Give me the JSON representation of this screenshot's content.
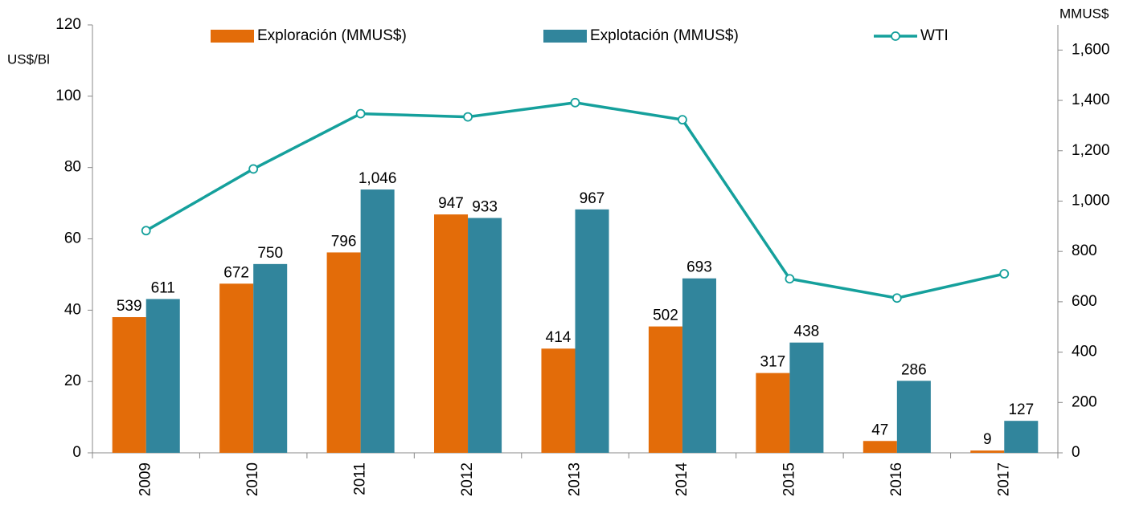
{
  "chart_data": {
    "type": "bar-line",
    "ylabel": "US$/Bl",
    "y2label": "MMUS$",
    "categories": [
      "2009",
      "2010",
      "2011",
      "2012",
      "2013",
      "2014",
      "2015",
      "2016",
      "2017"
    ],
    "series": [
      {
        "name": "Exploración (MMUS$)",
        "type": "bar",
        "axis": "y2",
        "color": "#e36c09",
        "values": [
          539,
          672,
          796,
          947,
          414,
          502,
          317,
          47,
          9
        ]
      },
      {
        "name": "Explotación (MMUS$)",
        "type": "bar",
        "axis": "y2",
        "color": "#31859c",
        "values": [
          611,
          750,
          1046,
          933,
          967,
          693,
          438,
          286,
          127
        ],
        "value_labels": [
          "611",
          "750",
          "1,046",
          "933",
          "967",
          "693",
          "438",
          "286",
          "127"
        ]
      },
      {
        "name": "WTI",
        "type": "line",
        "axis": "y",
        "color": "#15a09c",
        "values": [
          62.3,
          79.6,
          95.1,
          94.2,
          98.2,
          93.4,
          48.8,
          43.4,
          50.2
        ]
      }
    ],
    "ylim": [
      0,
      120
    ],
    "yticks": [
      0,
      20,
      40,
      60,
      80,
      100,
      120
    ],
    "y2lim": [
      0,
      1700
    ],
    "y2ticks": [
      0,
      200,
      400,
      600,
      800,
      {
        "value": 1000,
        "label": "1,000"
      },
      {
        "value": 1200,
        "label": "1,200"
      },
      {
        "value": 1400,
        "label": "1,400"
      },
      {
        "value": 1600,
        "label": "1,600"
      }
    ],
    "legend": "top",
    "grid": false
  }
}
